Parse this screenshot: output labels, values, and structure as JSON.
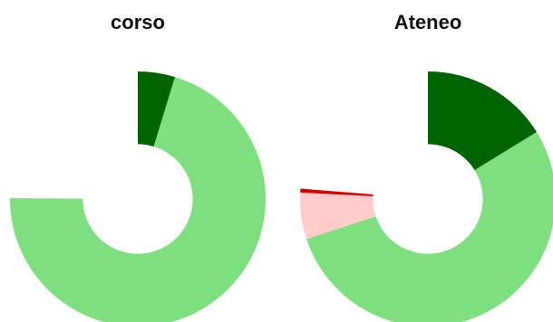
{
  "chart_data": [
    {
      "type": "pie",
      "title": "corso",
      "start_angle_deg": 0,
      "direction": "clockwise",
      "hole_ratio": 0.43,
      "slices": [
        {
          "value": 4.7,
          "color": "#006400"
        },
        {
          "value": 70.4,
          "color": "#7ddf7d"
        }
      ]
    },
    {
      "type": "pie",
      "title": "Ateneo",
      "start_angle_deg": 0,
      "direction": "clockwise",
      "hole_ratio": 0.43,
      "slices": [
        {
          "value": 16.2,
          "color": "#006400"
        },
        {
          "value": 53.7,
          "color": "#7ddf7d"
        },
        {
          "value": 5.9,
          "color": "#ffcccc"
        },
        {
          "value": 0.5,
          "color": "#dd0000"
        }
      ]
    }
  ]
}
